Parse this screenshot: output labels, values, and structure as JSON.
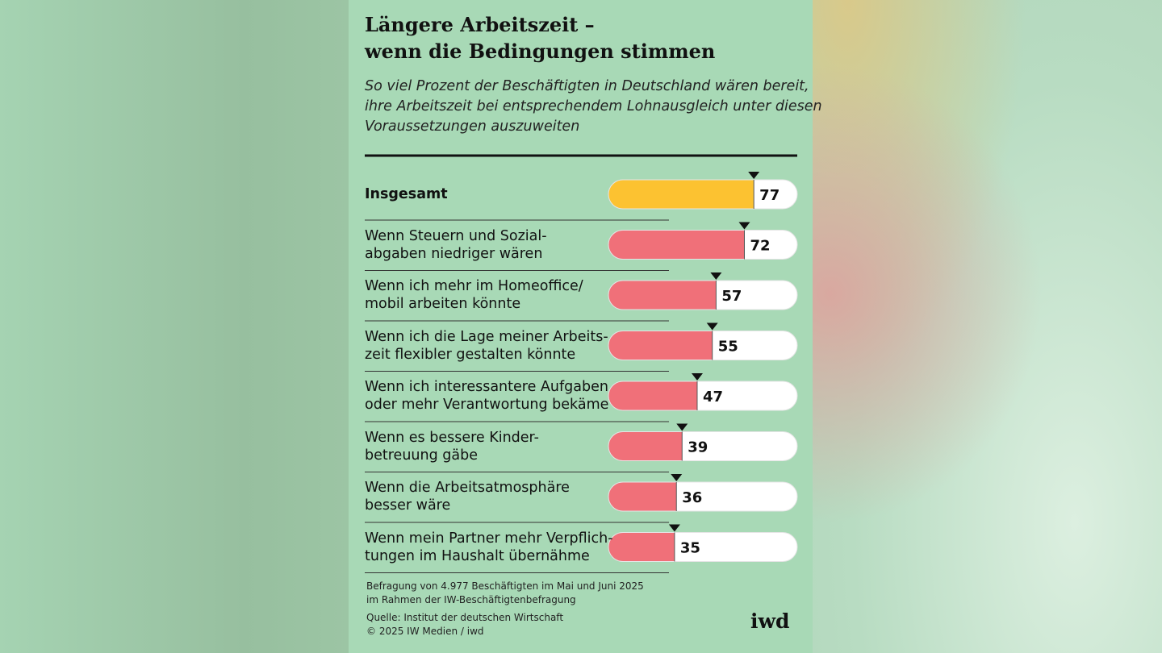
{
  "chart_data": {
    "type": "bar",
    "title": "Längere Arbeitszeit –\nwenn die Bedingungen stimmen",
    "subtitle": "So viel Prozent der Beschäftigten in Deutschland wären bereit,\nihre Arbeitszeit bei entsprechendem Lohnausgleich unter diesen\nVoraussetzungen auszuweiten",
    "categories": [
      "Insgesamt",
      "Wenn Steuern und Sozial-\nabgaben niedriger wären",
      "Wenn ich mehr im Homeoffice/\nmobil arbeiten könnte",
      "Wenn ich die Lage meiner Arbeits-\nzeit flexibler gestalten könnte",
      "Wenn ich interessantere Aufgaben\noder mehr Verantwortung bekäme",
      "Wenn es bessere Kinder-\nbetreuung gäbe",
      "Wenn die Arbeitsatmosphäre\nbesser wäre",
      "Wenn mein Partner mehr Verpflich-\ntungen im Haushalt übernähme"
    ],
    "values": [
      77,
      72,
      57,
      55,
      47,
      39,
      36,
      35
    ],
    "colors": [
      "#fcc231",
      "#f07079",
      "#f07079",
      "#f07079",
      "#f07079",
      "#f07079",
      "#f07079",
      "#f07079"
    ],
    "xlim": [
      0,
      100
    ],
    "note": "Befragung von 4.977 Beschäftigten im Mai und Juni 2025\nim Rahmen der IW-Beschäftigtenbefragung",
    "source": "Quelle: Institut der deutschen Wirtschaft\n© 2025 IW Medien / iwd",
    "logo": "iwd"
  }
}
